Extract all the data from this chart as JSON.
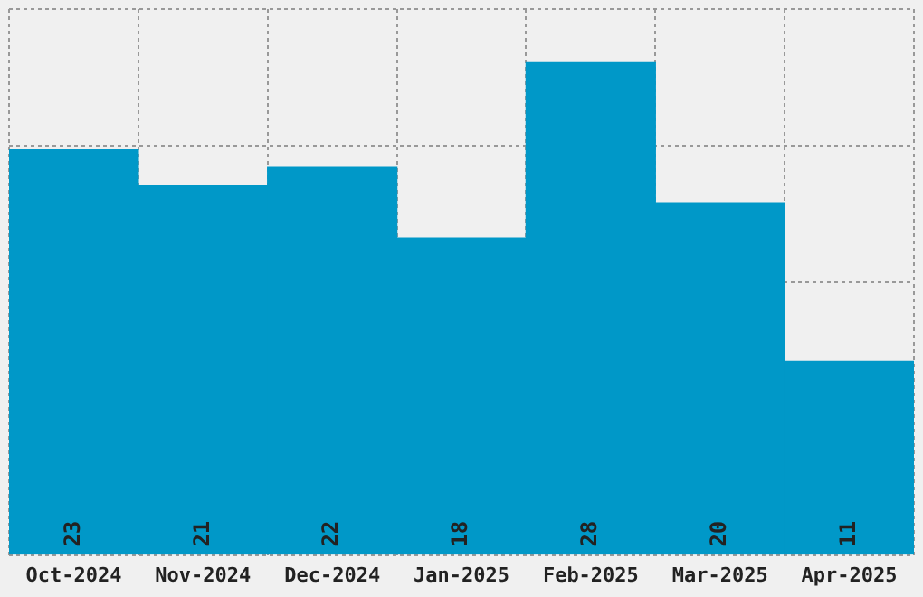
{
  "chart_data": {
    "type": "bar",
    "categories": [
      "Oct-2024",
      "Nov-2024",
      "Dec-2024",
      "Jan-2025",
      "Feb-2025",
      "Mar-2025",
      "Apr-2025"
    ],
    "values": [
      23,
      21,
      22,
      18,
      28,
      20,
      11
    ],
    "color": "#0098c8",
    "data_labels": true,
    "grid": true,
    "tick_labels": "x",
    "ylim": [
      0,
      31
    ]
  }
}
